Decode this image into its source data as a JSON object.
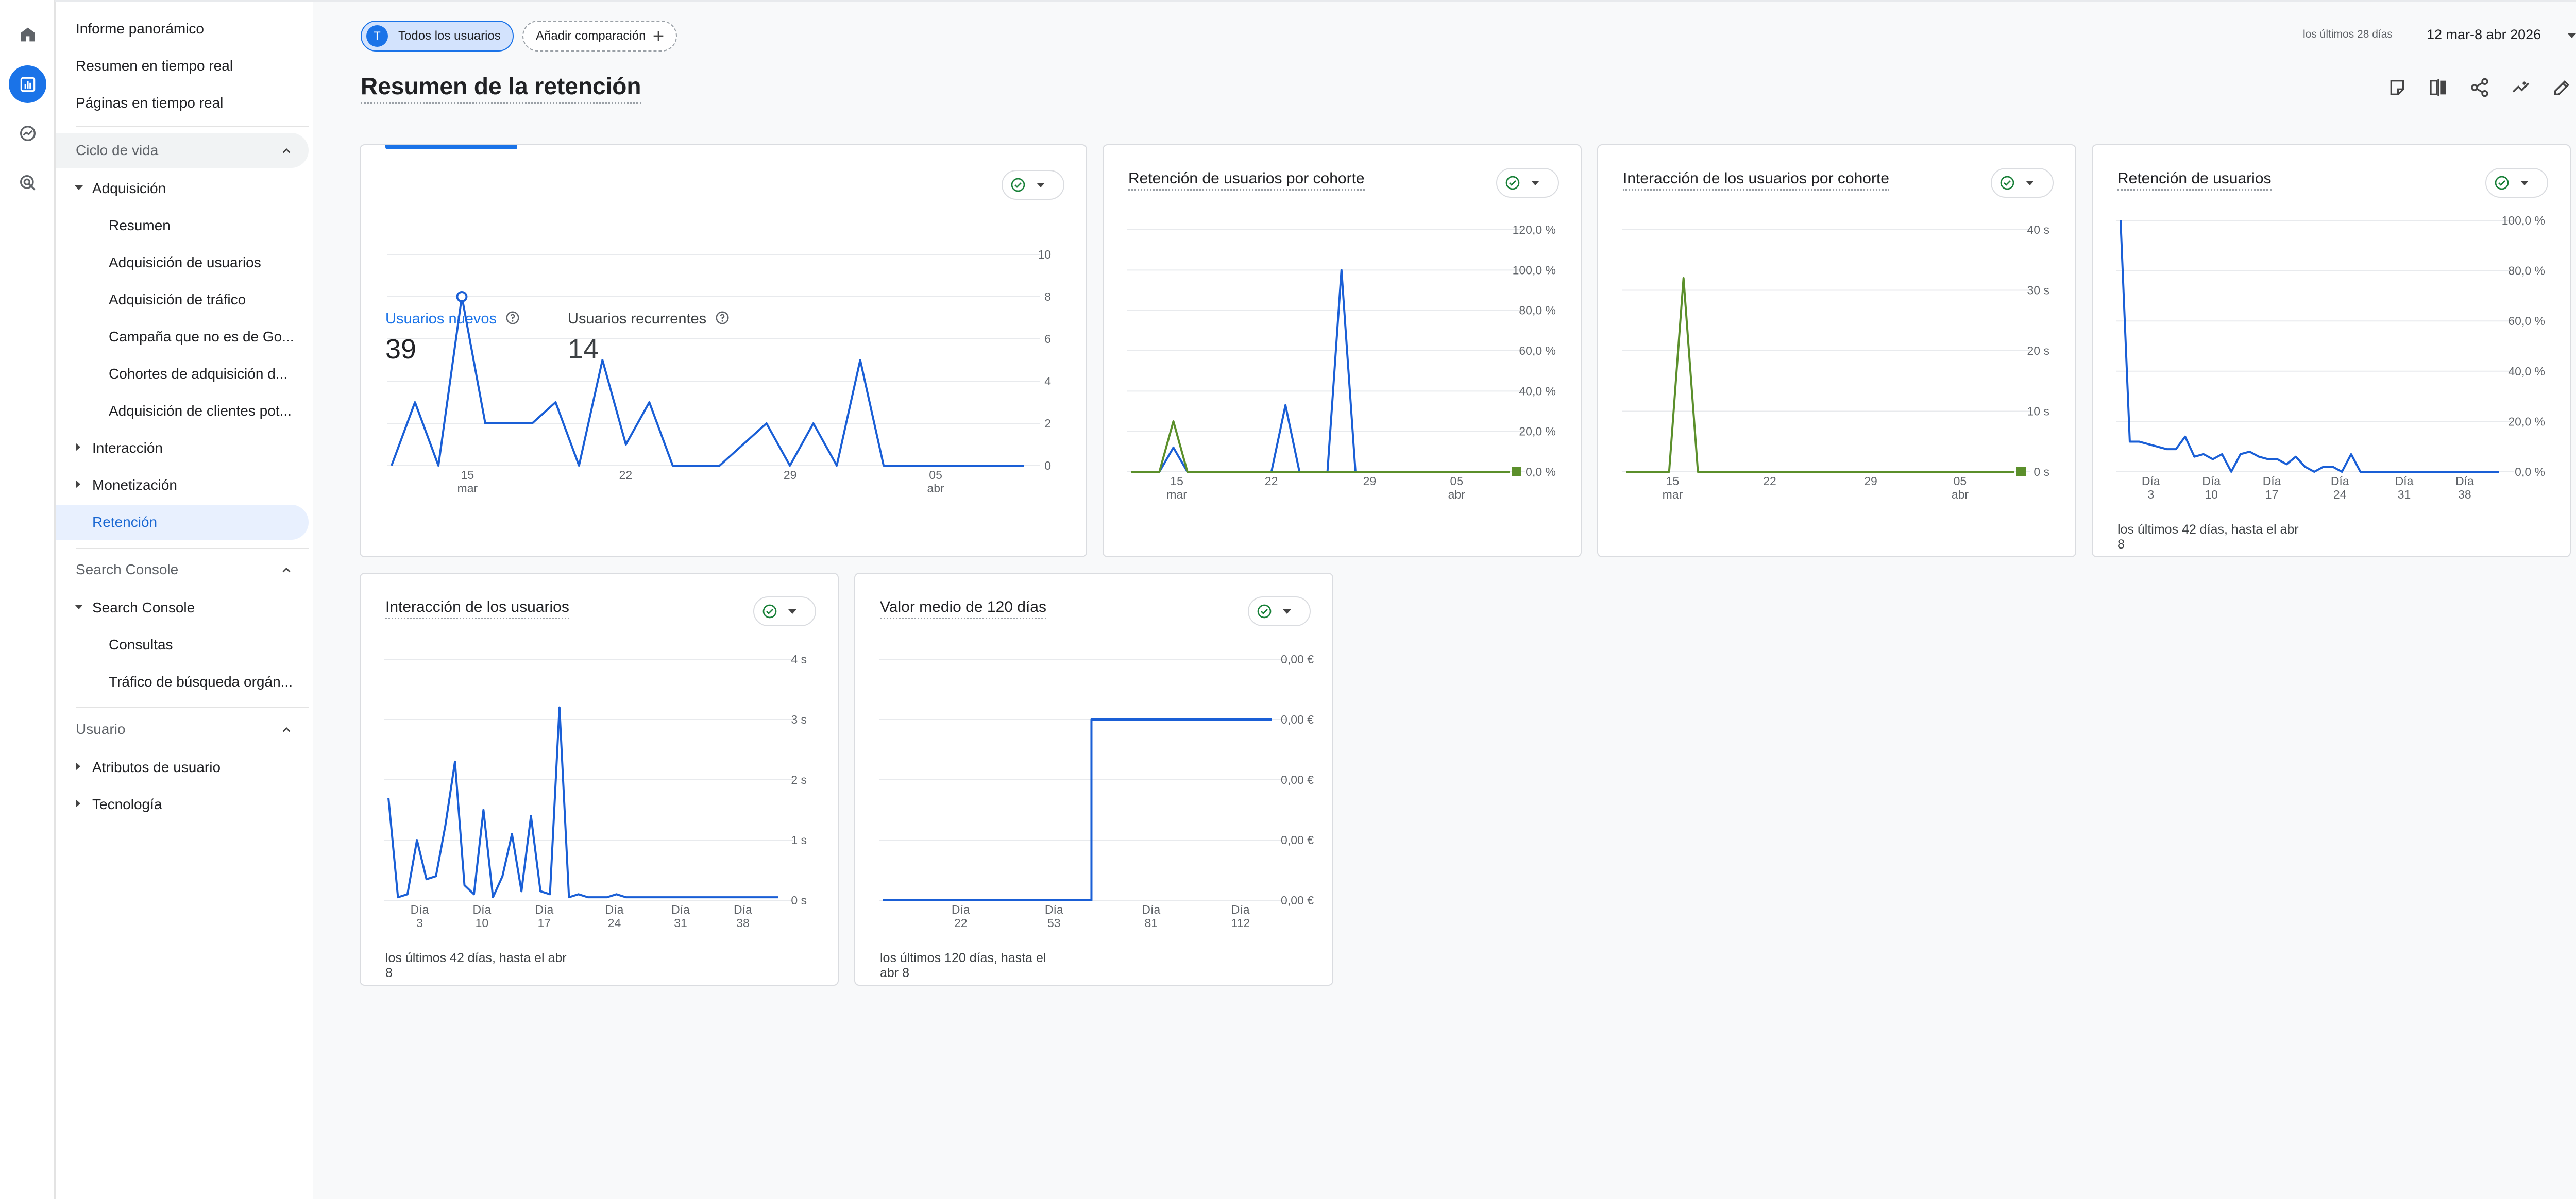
{
  "nav": {
    "top": [
      "Informe panorámico",
      "Resumen en tiempo real",
      "Páginas en tiempo real"
    ],
    "lifecycle": {
      "title": "Ciclo de vida",
      "acquisition": "Adquisición",
      "acquisition_items": [
        "Resumen",
        "Adquisición de usuarios",
        "Adquisición de tráfico",
        "Campaña que no es de Go...",
        "Cohortes de adquisición d...",
        "Adquisición de clientes pot..."
      ],
      "engagement": "Interacción",
      "monetization": "Monetización",
      "retention": "Retención"
    },
    "search_console": {
      "title": "Search Console",
      "group": "Search Console",
      "items": [
        "Consultas",
        "Tráfico de búsqueda orgán..."
      ]
    },
    "user": {
      "title": "Usuario",
      "items": [
        "Atributos de usuario",
        "Tecnología"
      ]
    }
  },
  "header": {
    "chip_users_avatar": "T",
    "chip_users": "Todos los usuarios",
    "chip_add": "Añadir comparación",
    "date_label": "los últimos 28 días",
    "date_range": "12 mar-8 abr 2026",
    "page_title": "Resumen de la retención"
  },
  "cards": {
    "users": {
      "new_label": "Usuarios nuevos",
      "new_value": "39",
      "returning_label": "Usuarios recurrentes",
      "returning_value": "14"
    },
    "cohort_retention": {
      "title": "Retención de usuarios por cohorte"
    },
    "cohort_engagement": {
      "title": "Interacción de los usuarios por cohorte"
    },
    "user_retention": {
      "title": "Retención de usuarios",
      "caption": "los últimos 42 días, hasta el abr 8"
    },
    "user_engagement": {
      "title": "Interacción de los usuarios",
      "caption": "los últimos 42 días, hasta el abr 8"
    },
    "ltv": {
      "title": "Valor medio de 120 días",
      "caption": "los últimos 120 días, hasta el abr 8"
    }
  },
  "colors": {
    "blue": "#1a5fd6",
    "green": "#5b8f2b",
    "accent": "#1a73e8"
  },
  "chart_data": [
    {
      "type": "line",
      "id": "users",
      "x_ticks": [
        "15 mar",
        "22",
        "29",
        "05 abr"
      ],
      "y_ticks": [
        "10",
        "8",
        "6",
        "4",
        "2",
        "0"
      ],
      "ylim": [
        0,
        10
      ],
      "series": [
        {
          "values": [
            0,
            3,
            0,
            8,
            2,
            2,
            2,
            3,
            0,
            5,
            1,
            3,
            0,
            0,
            0,
            1,
            2,
            0,
            2,
            0,
            5,
            0,
            0,
            0,
            0,
            0,
            0,
            0
          ]
        }
      ]
    },
    {
      "type": "line",
      "id": "cohort_retention",
      "x_ticks": [
        "15 mar",
        "22",
        "29",
        "05 abr"
      ],
      "y_ticks": [
        "120,0 %",
        "100,0 %",
        "80,0 %",
        "60,0 %",
        "40,0 %",
        "20,0 %",
        "0,0 %"
      ],
      "ylim": [
        0,
        120
      ],
      "series": [
        {
          "color": "blue",
          "values": [
            0,
            0,
            0,
            12,
            0,
            0,
            0,
            0,
            0,
            0,
            0,
            33,
            0,
            0,
            0,
            100,
            0,
            0,
            0,
            0,
            0,
            0,
            0,
            0,
            0,
            0,
            0,
            0
          ]
        },
        {
          "color": "green",
          "values": [
            0,
            0,
            0,
            25,
            0,
            0,
            0,
            0,
            0,
            0,
            0,
            0,
            0,
            0,
            0,
            0,
            0,
            0,
            0,
            0,
            0,
            0,
            0,
            0,
            0,
            0,
            0,
            0
          ]
        }
      ]
    },
    {
      "type": "line",
      "id": "cohort_engagement",
      "x_ticks": [
        "15 mar",
        "22",
        "29",
        "05 abr"
      ],
      "y_ticks": [
        "40 s",
        "30 s",
        "20 s",
        "10 s",
        "0 s"
      ],
      "ylim": [
        0,
        40
      ],
      "series": [
        {
          "color": "green",
          "values": [
            0,
            0,
            0,
            0,
            32,
            0,
            0,
            0,
            0,
            0,
            0,
            0,
            0,
            0,
            0,
            0,
            0,
            0,
            0,
            0,
            0,
            0,
            0,
            0,
            0,
            0,
            0,
            0
          ]
        }
      ]
    },
    {
      "type": "line",
      "id": "user_retention",
      "x_ticks": [
        "Día 3",
        "Día 10",
        "Día 17",
        "Día 24",
        "Día 31",
        "Día 38"
      ],
      "y_ticks": [
        "100,0 %",
        "80,0 %",
        "60,0 %",
        "40,0 %",
        "20,0 %",
        "0,0 %"
      ],
      "ylim": [
        0,
        100
      ],
      "series": [
        {
          "values": [
            100,
            12,
            12,
            11,
            10,
            9,
            9,
            14,
            6,
            7,
            5,
            7,
            0,
            7,
            8,
            6,
            5,
            5,
            3,
            6,
            2,
            0,
            2,
            2,
            0,
            7,
            0,
            0,
            0,
            0,
            0,
            0,
            0,
            0,
            0,
            0,
            0,
            0,
            0,
            0,
            0,
            0
          ]
        }
      ]
    },
    {
      "type": "line",
      "id": "user_engagement",
      "x_ticks": [
        "Día 3",
        "Día 10",
        "Día 17",
        "Día 24",
        "Día 31",
        "Día 38"
      ],
      "y_ticks": [
        "4 s",
        "3 s",
        "2 s",
        "1 s",
        "0 s"
      ],
      "ylim": [
        0,
        4
      ],
      "series": [
        {
          "values": [
            1.7,
            0.05,
            0.1,
            1.0,
            0.35,
            0.4,
            1.25,
            2.3,
            0.25,
            0.1,
            1.5,
            0.05,
            0.4,
            1.1,
            0.15,
            1.4,
            0.15,
            0.1,
            3.2,
            0.05,
            0.1,
            0.05,
            0.05,
            0.05,
            0.1,
            0.05,
            0.05,
            0.05,
            0.05,
            0.05,
            0.05,
            0.05,
            0.05,
            0.05,
            0.05,
            0.05,
            0.05,
            0.05,
            0.05,
            0.05,
            0.05,
            0.05
          ]
        }
      ]
    },
    {
      "type": "line",
      "id": "ltv",
      "x_ticks": [
        "Día 22",
        "Día 53",
        "Día 81",
        "Día 112"
      ],
      "y_ticks": [
        "0,00 €",
        "0,00 €",
        "0,00 €",
        "0,00 €",
        "0,00 €"
      ],
      "series": [
        {
          "values": [
            0,
            0,
            0,
            0,
            0,
            0,
            0,
            0,
            0,
            0,
            0,
            0,
            0,
            0,
            0,
            0,
            0,
            0,
            0,
            0,
            0,
            0,
            0,
            0,
            0,
            0,
            0,
            0,
            0,
            0,
            0,
            0,
            0,
            0,
            0,
            0,
            0,
            0,
            0,
            0,
            0,
            0,
            0,
            0,
            0,
            0,
            0,
            0,
            0,
            0,
            0,
            0,
            0,
            0,
            0,
            0,
            0,
            0,
            0,
            0,
            0,
            0,
            0,
            0,
            0,
            0,
            0,
            0,
            0,
            0,
            0,
            0,
            0,
            0,
            0,
            0,
            0,
            0,
            0,
            0,
            0,
            0,
            0,
            0,
            0,
            0,
            0,
            0,
            0,
            0,
            0,
            0,
            0,
            0,
            0,
            0,
            0,
            0,
            0,
            0,
            0,
            0,
            0,
            0,
            0,
            0,
            0,
            0,
            0,
            0,
            0,
            0,
            0,
            0,
            0,
            0,
            0,
            0,
            0,
            0,
            0,
            0,
            0,
            0,
            0,
            0,
            0,
            0,
            0,
            0,
            0,
            0,
            0,
            0,
            0,
            0,
            0,
            0,
            0,
            0,
            0,
            0,
            0,
            0,
            0,
            0,
            0,
            0,
            0,
            0,
            0,
            0
          ]
        }
      ]
    }
  ]
}
